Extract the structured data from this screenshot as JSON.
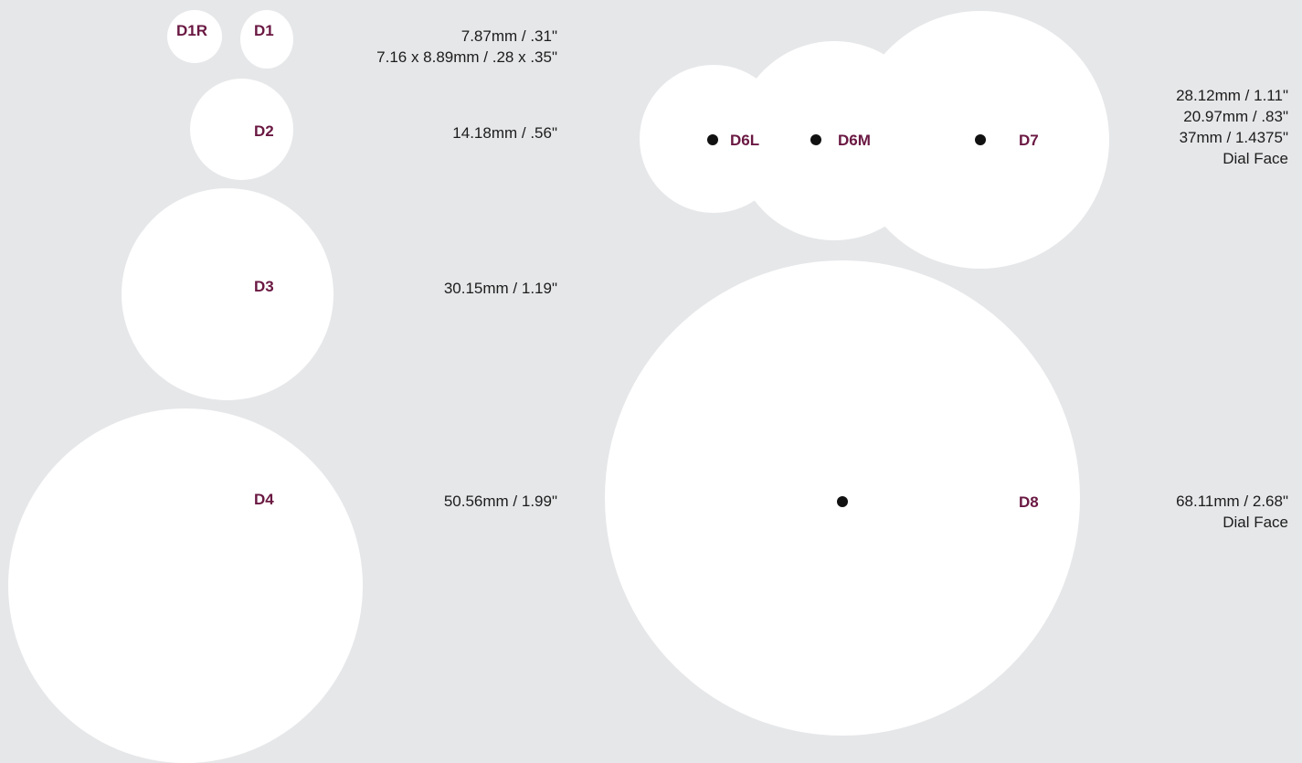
{
  "colors": {
    "background": "#e6e7e9",
    "disc": "#ffffff",
    "label": "#6a1842",
    "text": "#1c1c1c",
    "pivot": "#111111"
  },
  "left": {
    "d1r": {
      "code": "D1R"
    },
    "d1": {
      "code": "D1",
      "spec_line1": "7.87mm / .31\"",
      "spec_line2": "7.16 x 8.89mm / .28 x .35\""
    },
    "d2": {
      "code": "D2",
      "spec": "14.18mm / .56\""
    },
    "d3": {
      "code": "D3",
      "spec": "30.15mm / 1.19\""
    },
    "d4": {
      "code": "D4",
      "spec": "50.56mm / 1.99\""
    }
  },
  "right": {
    "d6l": {
      "code": "D6L"
    },
    "d6m": {
      "code": "D6M"
    },
    "d7": {
      "code": "D7"
    },
    "group_specs": [
      "28.12mm / 1.11\"",
      "20.97mm / .83\"",
      "37mm / 1.4375\"",
      "Dial Face"
    ],
    "d8": {
      "code": "D8",
      "spec_line1": "68.11mm / 2.68\"",
      "spec_line2": "Dial Face"
    }
  }
}
